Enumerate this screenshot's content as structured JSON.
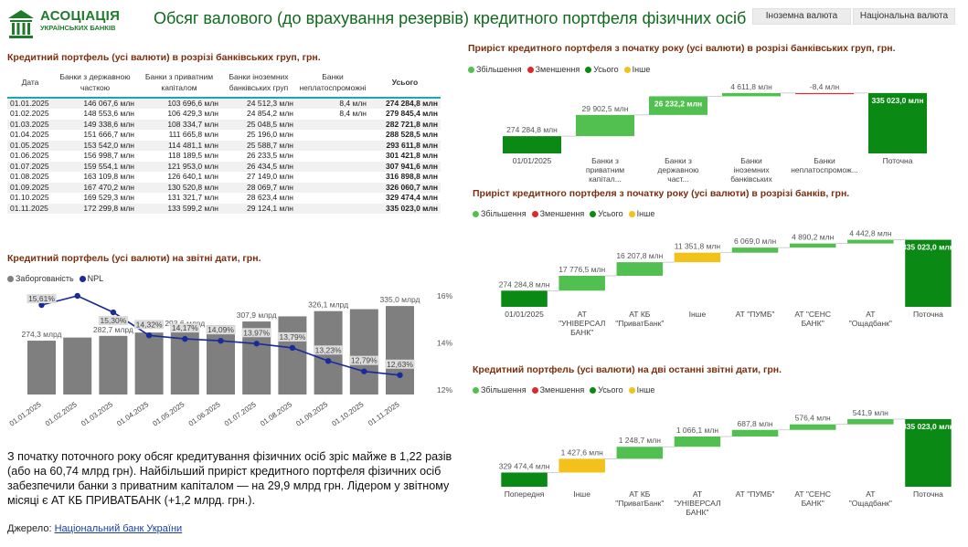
{
  "logo": {
    "line1": "АСОЦІАЦІЯ",
    "line2": "УКРАЇНСЬКИХ БАНКІВ"
  },
  "title": "Обсяг валового (до врахування резервів) кредитного портфеля фізичних осіб",
  "currency_toggle": {
    "foreign": "Іноземна валюта",
    "national": "Національна валюта"
  },
  "colors": {
    "increase": "#52c050",
    "decrease": "#e0282a",
    "total": "#0a8a14",
    "other": "#f2c21a",
    "bar": "#7f7f7f",
    "npl": "#1b2a9a"
  },
  "table": {
    "title": "Кредитний  портфель    (усі валюти) в розрізі банківських груп,  грн.",
    "headers": [
      "Дата",
      "Банки з державною часткою",
      "Банки з приватним капіталом",
      "Банки іноземних банківських груп",
      "Банки неплатоспроможні",
      "Усього"
    ],
    "rows": [
      [
        "01.01.2025",
        "146 067,6 млн",
        "103 696,6 млн",
        "24 512,3 млн",
        "8,4 млн",
        "274 284,8 млн"
      ],
      [
        "01.02.2025",
        "148 553,6 млн",
        "106 429,3 млн",
        "24 854,2 млн",
        "8,4 млн",
        "279 845,4 млн"
      ],
      [
        "01.03.2025",
        "149 338,6 млн",
        "108 334,7 млн",
        "25 048,5 млн",
        "",
        "282 721,8 млн"
      ],
      [
        "01.04.2025",
        "151 666,7 млн",
        "111 665,8 млн",
        "25 196,0 млн",
        "",
        "288 528,5 млн"
      ],
      [
        "01.05.2025",
        "153 542,0 млн",
        "114 481,1 млн",
        "25 588,7 млн",
        "",
        "293 611,8 млн"
      ],
      [
        "01.06.2025",
        "156 998,7 млн",
        "118 189,5 млн",
        "26 233,5 млн",
        "",
        "301 421,8 млн"
      ],
      [
        "01.07.2025",
        "159 554,1 млн",
        "121 953,0 млн",
        "26 434,5 млн",
        "",
        "307 941,6 млн"
      ],
      [
        "01.08.2025",
        "163 109,8 млн",
        "126 640,1 млн",
        "27 149,0 млн",
        "",
        "316 898,8 млн"
      ],
      [
        "01.09.2025",
        "167 470,2 млн",
        "130 520,8 млн",
        "28 069,7 млн",
        "",
        "326 060,7 млн"
      ],
      [
        "01.10.2025",
        "169 529,3 млн",
        "131 321,7 млн",
        "28 623,4 млн",
        "",
        "329 474,4 млн"
      ],
      [
        "01.11.2025",
        "172 299,8 млн",
        "133 599,2 млн",
        "29 124,1 млн",
        "",
        "335 023,0 млн"
      ]
    ]
  },
  "legend_labels": {
    "increase": "Збільшення",
    "decrease": "Зменшення",
    "total": "Усього",
    "other": "Інше"
  },
  "chart_data": [
    {
      "id": "portfolio-npl",
      "type": "bar",
      "title": "Кредитний портфель   (усі валюти) на  звітні дати, грн.",
      "categories": [
        "01.01.2025",
        "01.02.2025",
        "01.03.2025",
        "01.04.2025",
        "01.05.2025",
        "01.06.2025",
        "01.07.2025",
        "01.08.2025",
        "01.09.2025",
        "01.10.2025",
        "01.11.2025"
      ],
      "series": [
        {
          "name": "Заборгованість",
          "values": [
            274.3,
            279.8,
            282.7,
            288.5,
            293.6,
            301.4,
            307.9,
            316.9,
            326.1,
            329.5,
            335.0
          ],
          "unit": "млрд"
        },
        {
          "name": "NPL",
          "values": [
            15.61,
            16.0,
            15.3,
            14.32,
            14.17,
            14.09,
            13.97,
            13.79,
            13.23,
            12.79,
            12.63
          ],
          "unit": "%"
        }
      ],
      "bar_labels": [
        "274,3 млрд",
        "",
        "282,7 млрд",
        "",
        "293,6 млрд",
        "",
        "307,9 млрд",
        "",
        "326,1 млрд",
        "",
        "335,0 млрд"
      ],
      "npl_labels": [
        "15,61%",
        "",
        "15,30%",
        "14,32%",
        "14,17%",
        "14,09%",
        "13,97%",
        "13,79%",
        "13,23%",
        "12,79%",
        "12,63%"
      ],
      "y2_ticks": [
        "16%",
        "14%",
        "12%"
      ],
      "y2lim": [
        12,
        16
      ]
    },
    {
      "id": "growth-groups",
      "type": "waterfall",
      "title": "Приріст кредитного портфеля з початку року   (усі валюти) в розрізі банківських груп, грн.",
      "items": [
        {
          "label": "01/01/2025",
          "value": 274284.8,
          "text": "274 284,8 млн",
          "kind": "total"
        },
        {
          "label": "Банки з приватним капітал...",
          "value": 29902.5,
          "text": "29 902,5 млн",
          "kind": "increase"
        },
        {
          "label": "Банки з державною част...",
          "value": 26232.2,
          "text": "26 232,2 млн",
          "kind": "increase"
        },
        {
          "label": "Банки іноземних банківських груп",
          "value": 4611.8,
          "text": "4 611,8 млн",
          "kind": "increase"
        },
        {
          "label": "Банки неплатоспромож...",
          "value": -8.4,
          "text": "-8,4 млн",
          "kind": "decrease"
        },
        {
          "label": "Поточна",
          "value": 335023.0,
          "text": "335 023,0 млн",
          "kind": "total"
        }
      ],
      "ylim": [
        250000,
        340000
      ]
    },
    {
      "id": "growth-banks",
      "type": "waterfall",
      "title": "Приріст кредитного портфеля з початку року    (усі валюти) в розрізі банків, грн.",
      "items": [
        {
          "label": "01/01/2025",
          "value": 274284.8,
          "text": "274 284,8 млн",
          "kind": "total"
        },
        {
          "label": "АТ \"УНІВЕРСАЛ БАНК\"",
          "value": 17776.5,
          "text": "17 776,5 млн",
          "kind": "increase"
        },
        {
          "label": "АТ КБ \"ПриватБанк\"",
          "value": 16207.8,
          "text": "16 207,8 млн",
          "kind": "increase"
        },
        {
          "label": "Інше",
          "value": 11351.8,
          "text": "11 351,8 млн",
          "kind": "other"
        },
        {
          "label": "АТ \"ПУМБ\"",
          "value": 6069.0,
          "text": "6 069,0 млн",
          "kind": "increase"
        },
        {
          "label": "АТ \"СЕНС БАНК\"",
          "value": 4890.2,
          "text": "4 890,2 млн",
          "kind": "increase"
        },
        {
          "label": "АТ \"Ощадбанк\"",
          "value": 4442.8,
          "text": "4 442,8 млн",
          "kind": "increase"
        },
        {
          "label": "Поточна",
          "value": 335023.0,
          "text": "335 023,0 млн",
          "kind": "total"
        }
      ],
      "ylim": [
        255000,
        340000
      ]
    },
    {
      "id": "last-two-dates",
      "type": "waterfall",
      "title": "Кредитний портфель   (усі валюти) на дві останні звітні дати, грн.",
      "items": [
        {
          "label": "Попередня",
          "value": 329474.4,
          "text": "329 474,4 млн",
          "kind": "total"
        },
        {
          "label": "Інше",
          "value": 1427.6,
          "text": "1 427,6 млн",
          "kind": "other"
        },
        {
          "label": "АТ КБ \"ПриватБанк\"",
          "value": 1248.7,
          "text": "1 248,7 млн",
          "kind": "increase"
        },
        {
          "label": "АТ \"УНІВЕРСАЛ БАНК\"",
          "value": 1066.1,
          "text": "1 066,1 млн",
          "kind": "increase"
        },
        {
          "label": "АТ \"ПУМБ\"",
          "value": 687.8,
          "text": "687,8 млн",
          "kind": "increase"
        },
        {
          "label": "АТ \"СЕНС БАНК\"",
          "value": 576.4,
          "text": "576,4 млн",
          "kind": "increase"
        },
        {
          "label": "АТ \"Ощадбанк\"",
          "value": 541.9,
          "text": "541,9 млн",
          "kind": "increase"
        },
        {
          "label": "Поточна",
          "value": 335023.0,
          "text": "335 023,0 млн",
          "kind": "total"
        }
      ],
      "ylim": [
        328000,
        335400
      ]
    }
  ],
  "summary": "З початку поточного року обсяг кредитування фізичних осіб зріс майже в 1,22 разів (або на 60,74 млрд грн). Найбільший приріст кредитного портфеля фізичних осіб забезпечили банки з приватним капіталом — на 29,9 млрд грн. Лідером у звітному  місяці є  АТ КБ ПРИВАТБАНК (+1,2 млрд. грн.).",
  "source": {
    "label": "Джерело:",
    "link_text": "Національний банк України"
  }
}
